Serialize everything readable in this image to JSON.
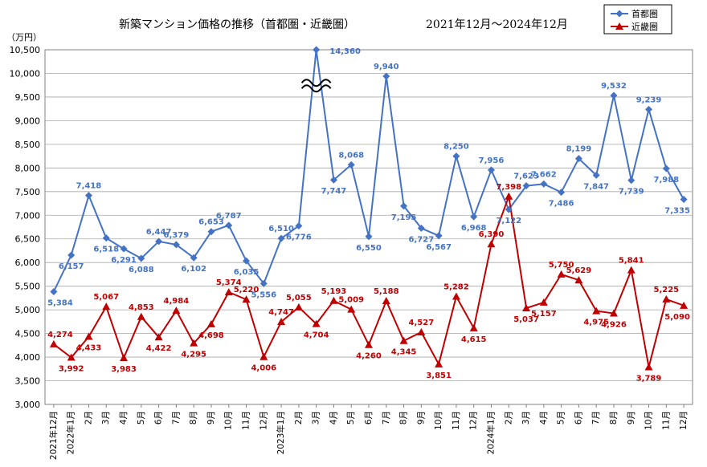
{
  "chart_data": {
    "type": "line",
    "title": "新築マンション価格の推移（首都圏・近畿圏）",
    "subtitle": "2021年12月～2024年12月",
    "ylabel": "（万円）",
    "ylim": [
      3000,
      10500
    ],
    "ytick_step": 500,
    "ytick_labels": [
      "3,000",
      "3,500",
      "4,000",
      "4,500",
      "5,000",
      "5,500",
      "6,000",
      "6,500",
      "7,000",
      "7,500",
      "8,000",
      "8,500",
      "9,000",
      "9,500",
      "10,000",
      "10,500"
    ],
    "categories": [
      "2021年12月",
      "2022年1月",
      "2月",
      "3月",
      "4月",
      "5月",
      "6月",
      "7月",
      "8月",
      "9月",
      "10月",
      "11月",
      "12月",
      "2023年1月",
      "2月",
      "3月",
      "4月",
      "5月",
      "6月",
      "7月",
      "8月",
      "9月",
      "10月",
      "11月",
      "12月",
      "2024年1月",
      "2月",
      "3月",
      "4月",
      "5月",
      "6月",
      "7月",
      "8月",
      "9月",
      "10月",
      "11月",
      "12月"
    ],
    "axis_break_annotation": "14,360 is shown clipped at the top of the axis with a break mark",
    "series": [
      {
        "name": "首都圏",
        "color": "#4472C4",
        "marker": "diamond",
        "values": [
          5384,
          6157,
          7418,
          6518,
          6291,
          6088,
          6447,
          6379,
          6102,
          6653,
          6787,
          6035,
          5556,
          6510,
          6776,
          14360,
          7747,
          8068,
          6550,
          9940,
          7195,
          6727,
          6567,
          8250,
          6968,
          7956,
          7122,
          7623,
          7662,
          7486,
          8199,
          7847,
          9532,
          7739,
          9239,
          7988,
          7335
        ],
        "labels": [
          "5,384",
          "6,157",
          "7,418",
          "6,518",
          "6,291",
          "6,088",
          "6,447",
          "6,379",
          "6,102",
          "6,653",
          "6,787",
          "6,035",
          "5,556",
          "6,510",
          "6,776",
          "14,360",
          "7,747",
          "8,068",
          "6,550",
          "9,940",
          "7,195",
          "6,727",
          "6,567",
          "8,250",
          "6,968",
          "7,956",
          "7,122",
          "7,623",
          "7,662",
          "7,486",
          "8,199",
          "7,847",
          "9,532",
          "7,739",
          "9,239",
          "7,988",
          "7,335"
        ]
      },
      {
        "name": "近畿圏",
        "color": "#C00000",
        "marker": "triangle",
        "values": [
          4274,
          3992,
          4433,
          5067,
          3983,
          4853,
          4422,
          4984,
          4295,
          4698,
          5374,
          5220,
          4006,
          4747,
          5055,
          4704,
          5193,
          5009,
          4260,
          5188,
          4345,
          4527,
          3851,
          5282,
          4615,
          6390,
          7398,
          5037,
          5157,
          5750,
          5629,
          4975,
          4926,
          5841,
          3789,
          5225,
          5090
        ],
        "labels": [
          "4,274",
          "3,992",
          "4,433",
          "5,067",
          "3,983",
          "4,853",
          "4,422",
          "4,984",
          "4,295",
          "4,698",
          "5,374",
          "5,220",
          "4,006",
          "4,747",
          "5,055",
          "4,704",
          "5,193",
          "5,009",
          "4,260",
          "5,188",
          "4,345",
          "4,527",
          "3,851",
          "5,282",
          "4,615",
          "6,390",
          "7,398",
          "5,037",
          "5,157",
          "5,750",
          "5,629",
          "4,975",
          "4,926",
          "5,841",
          "3,789",
          "5,225",
          "5,090"
        ]
      }
    ],
    "legend": {
      "position": "top-right",
      "entries": [
        "首都圏",
        "近畿圏"
      ]
    }
  }
}
